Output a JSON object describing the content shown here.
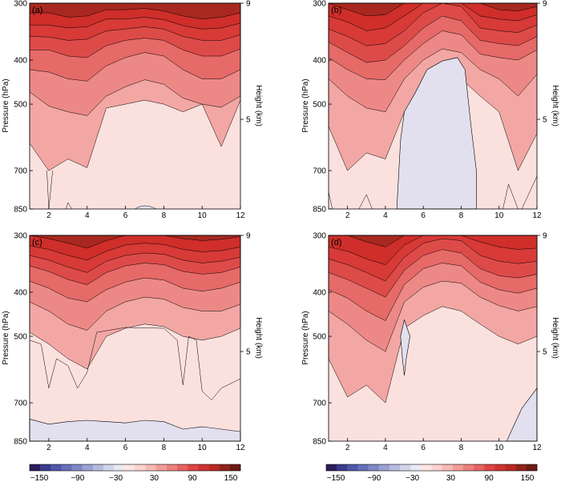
{
  "chart_data": [
    {
      "type": "filled-contour",
      "panel_label": "(a)",
      "xlabel": "",
      "ylabel": "Pressure (hPa)",
      "y2label": "Height (km)",
      "x_ticks": [
        "2",
        "4",
        "6",
        "8",
        "10",
        "12"
      ],
      "y_ticks": [
        "300",
        "400",
        "500",
        "700",
        "850"
      ],
      "y2_ticks": [
        "9",
        "5"
      ],
      "xlim": [
        1,
        12
      ],
      "ylim_hPa": [
        850,
        300
      ],
      "contour_levels_from_top": [
        {
          "level_hPa_at_x": [
            315,
            315,
            322,
            320,
            310,
            310,
            308,
            312,
            320,
            325,
            322,
            315
          ],
          "value": 120
        },
        {
          "level_hPa_at_x": [
            335,
            335,
            340,
            338,
            325,
            325,
            322,
            326,
            336,
            342,
            340,
            332
          ],
          "value": 100
        },
        {
          "level_hPa_at_x": [
            355,
            356,
            362,
            360,
            345,
            342,
            338,
            342,
            355,
            362,
            362,
            352
          ],
          "value": 80
        },
        {
          "level_hPa_at_x": [
            380,
            380,
            392,
            395,
            372,
            362,
            358,
            362,
            380,
            392,
            392,
            378
          ],
          "value": 60
        },
        {
          "level_hPa_at_x": [
            420,
            425,
            440,
            445,
            412,
            395,
            385,
            392,
            420,
            440,
            440,
            420
          ],
          "value": 40
        },
        {
          "level_hPa_at_x": [
            470,
            505,
            520,
            530,
            480,
            458,
            442,
            452,
            485,
            500,
            508,
            480
          ],
          "value": 20
        },
        {
          "level_hPa_at_x": [
            610,
            700,
            660,
            690,
            510,
            500,
            490,
            500,
            520,
            500,
            620,
            490
          ],
          "value": 10
        }
      ]
    },
    {
      "type": "filled-contour",
      "panel_label": "(b)",
      "xlabel": "",
      "ylabel": "Pressure (hPa)",
      "y2label": "Height (km)",
      "x_ticks": [
        "2",
        "4",
        "6",
        "8",
        "10",
        "12"
      ],
      "y_ticks": [
        "300",
        "400",
        "500",
        "700",
        "850"
      ],
      "y2_ticks": [
        "9",
        "5"
      ],
      "xlim": [
        1,
        12
      ],
      "negative_region_x_range": [
        4.6,
        8.8
      ],
      "negative_region_top_hPa": 395
    },
    {
      "type": "filled-contour",
      "panel_label": "(c)",
      "xlabel": "",
      "ylabel": "Pressure (hPa)",
      "y2label": "Height (km)",
      "x_ticks": [
        "2",
        "4",
        "6",
        "8",
        "10",
        "12"
      ],
      "y_ticks": [
        "300",
        "400",
        "500",
        "700",
        "850"
      ],
      "y2_ticks": [
        "9",
        "5"
      ],
      "xlim": [
        1,
        12
      ],
      "negative_region_top_hPa": 760
    },
    {
      "type": "filled-contour",
      "panel_label": "(d)",
      "xlabel": "",
      "ylabel": "Pressure (hPa)",
      "y2label": "Height (km)",
      "x_ticks": [
        "2",
        "4",
        "6",
        "8",
        "10",
        "12"
      ],
      "y_ticks": [
        "300",
        "400",
        "500",
        "700",
        "850"
      ],
      "y2_ticks": [
        "9",
        "5"
      ],
      "xlim": [
        1,
        12
      ],
      "negative_region_x_range": [
        4.8,
        5.3
      ]
    }
  ],
  "colorbar": {
    "tick_labels": [
      "−150",
      "−90",
      "−30",
      "30",
      "90",
      "150"
    ],
    "tick_values": [
      -150,
      -90,
      -30,
      30,
      90,
      150
    ],
    "range": [
      -165,
      165
    ],
    "colors": [
      "#2b1d5c",
      "#3b3b8e",
      "#4f57a8",
      "#6670b8",
      "#7f88c6",
      "#9aa1d2",
      "#b6bbde",
      "#d2d5ea",
      "#ebe9f3",
      "#fde6e4",
      "#fbd2ce",
      "#f7b9b4",
      "#f29c98",
      "#ec7f7c",
      "#e56260",
      "#dd4544",
      "#cf3230",
      "#b82924",
      "#8f231c",
      "#6b1a14"
    ]
  },
  "panel_fill_colors": {
    "low": "#fbe1de",
    "c10": "#f7c4c0",
    "c20": "#f2a7a4",
    "c40": "#ec8986",
    "c60": "#e56a68",
    "c80": "#dd4b49",
    "c100": "#d73a37",
    "c120": "#cf2e2a",
    "dark": "#a82820",
    "negative": "#e2e0ee",
    "line": "#000000"
  }
}
